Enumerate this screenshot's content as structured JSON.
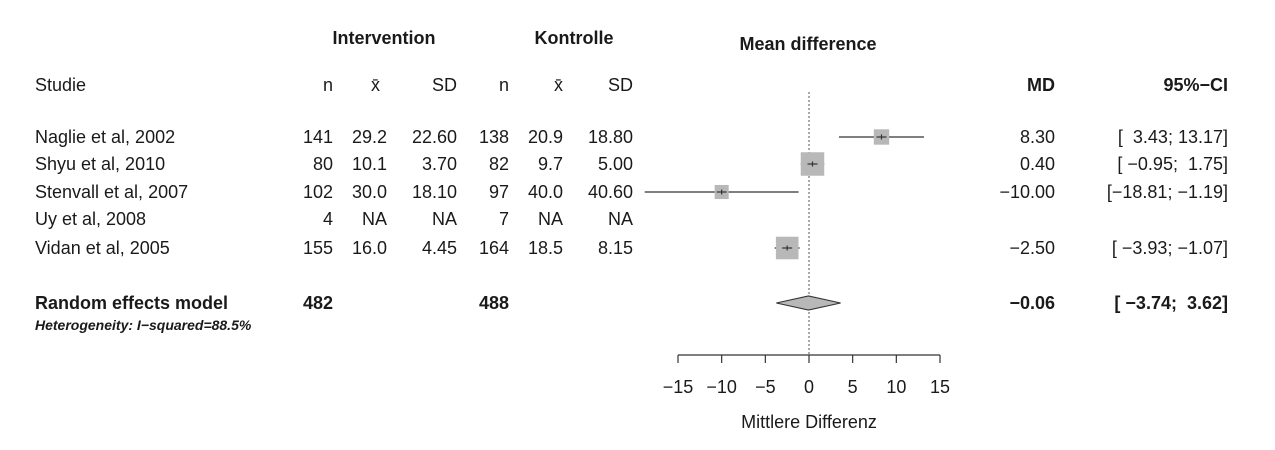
{
  "header": {
    "intervention": "Intervention",
    "control": "Kontrolle",
    "plot_title": "Mean difference",
    "study": "Studie",
    "n": "n",
    "mean": "x̄",
    "sd": "SD",
    "md": "MD",
    "ci": "95%−CI"
  },
  "chart_data": {
    "type": "forest",
    "xlabel": "Mittlere Differenz",
    "xlim": [
      -15,
      15
    ],
    "ticks": [
      "−15",
      "−10",
      "−5",
      "0",
      "5",
      "10",
      "15"
    ],
    "tick_values": [
      -15,
      -10,
      -5,
      0,
      5,
      10,
      15
    ],
    "studies": [
      {
        "name": "Naglie et al, 2002",
        "n_i": "141",
        "mean_i": "29.2",
        "sd_i": "22.60",
        "n_c": "138",
        "mean_c": "20.9",
        "sd_c": "18.80",
        "md_text": "8.30",
        "ci_text": "[  3.43; 13.17]",
        "md": 8.3,
        "lo": 3.43,
        "hi": 13.17,
        "weight": 0.12
      },
      {
        "name": "Shyu et al, 2010",
        "n_i": "80",
        "mean_i": "10.1",
        "sd_i": "3.70",
        "n_c": "82",
        "mean_c": "9.7",
        "sd_c": "5.00",
        "md_text": "0.40",
        "ci_text": "[ −0.95;  1.75]",
        "md": 0.4,
        "lo": -0.95,
        "hi": 1.75,
        "weight": 0.3
      },
      {
        "name": "Stenvall et al, 2007",
        "n_i": "102",
        "mean_i": "30.0",
        "sd_i": "18.10",
        "n_c": "97",
        "mean_c": "40.0",
        "sd_c": "40.60",
        "md_text": "−10.00",
        "ci_text": "[−18.81; −1.19]",
        "md": -10.0,
        "lo": -18.81,
        "hi": -1.19,
        "weight": 0.09
      },
      {
        "name": "Uy et al, 2008",
        "n_i": "4",
        "mean_i": "NA",
        "sd_i": "NA",
        "n_c": "7",
        "mean_c": "NA",
        "sd_c": "NA",
        "md_text": "",
        "ci_text": "",
        "md": null,
        "lo": null,
        "hi": null,
        "weight": 0
      },
      {
        "name": "Vidan et al, 2005",
        "n_i": "155",
        "mean_i": "16.0",
        "sd_i": "4.45",
        "n_c": "164",
        "mean_c": "18.5",
        "sd_c": "8.15",
        "md_text": "−2.50",
        "ci_text": "[ −3.93; −1.07]",
        "md": -2.5,
        "lo": -3.93,
        "hi": -1.07,
        "weight": 0.28
      }
    ],
    "pooled": {
      "name": "Random effects model",
      "n_i": "482",
      "n_c": "488",
      "md_text": "−0.06",
      "ci_text": "[ −3.74;  3.62]",
      "md": -0.06,
      "lo": -3.74,
      "hi": 3.62
    },
    "heterogeneity": "Heterogeneity: I−squared=88.5%",
    "colors": {
      "box": "#b8b8b8",
      "diamond": "#b8b8b8",
      "line": "#333333"
    }
  }
}
